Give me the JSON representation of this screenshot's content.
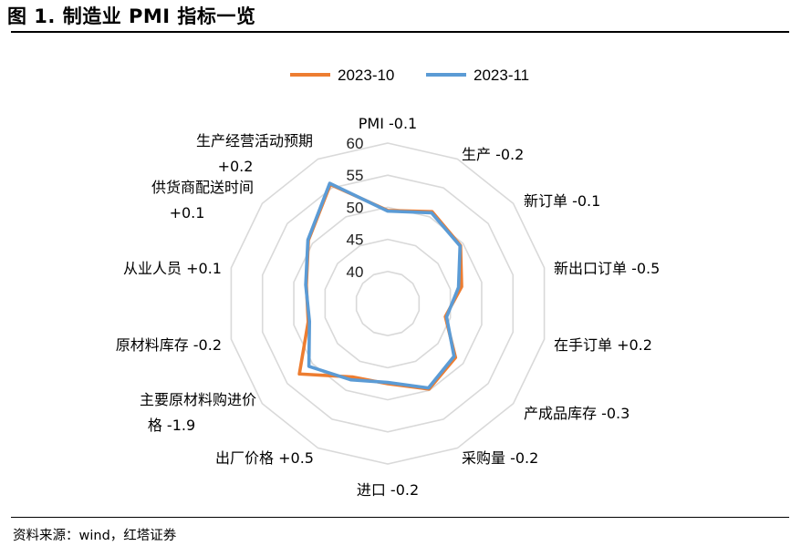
{
  "header": {
    "title": "图 1. 制造业 PMI 指标一览"
  },
  "footer": {
    "source": "资料来源：wind，红塔证券"
  },
  "chart_data": {
    "type": "radar",
    "title": "图 1. 制造业 PMI 指标一览",
    "legend_position": "top-center",
    "grid": true,
    "rlim": [
      35,
      60
    ],
    "rticks": [
      40,
      45,
      50,
      55,
      60
    ],
    "axes": [
      [
        "PMI -0.1"
      ],
      [
        "生产 -0.2"
      ],
      [
        "新订单 -0.1"
      ],
      [
        "新出口订单 -0.5"
      ],
      [
        "在手订单 +0.2"
      ],
      [
        "产成品库存 -0.3"
      ],
      [
        "采购量 -0.2"
      ],
      [
        "进口 -0.2"
      ],
      [
        "出厂价格 +0.5"
      ],
      [
        "主要原材料购进价",
        "格 -1.9"
      ],
      [
        "原材料库存 -0.2"
      ],
      [
        "从业人员 +0.1"
      ],
      [
        "供货商配送时间",
        "+0.1"
      ],
      [
        "生产经营活动预期",
        "+0.2"
      ]
    ],
    "series": [
      {
        "name": "2023-10",
        "color": "#ED7D31",
        "values": [
          49.5,
          50.9,
          49.5,
          46.8,
          44.2,
          48.5,
          49.8,
          47.5,
          47.7,
          52.6,
          47.7,
          48.0,
          50.8,
          55.6
        ]
      },
      {
        "name": "2023-11",
        "color": "#5B9BD5",
        "values": [
          49.4,
          50.7,
          49.4,
          46.3,
          44.4,
          48.2,
          49.6,
          47.3,
          48.2,
          50.7,
          47.5,
          48.1,
          50.9,
          55.8
        ]
      }
    ]
  }
}
